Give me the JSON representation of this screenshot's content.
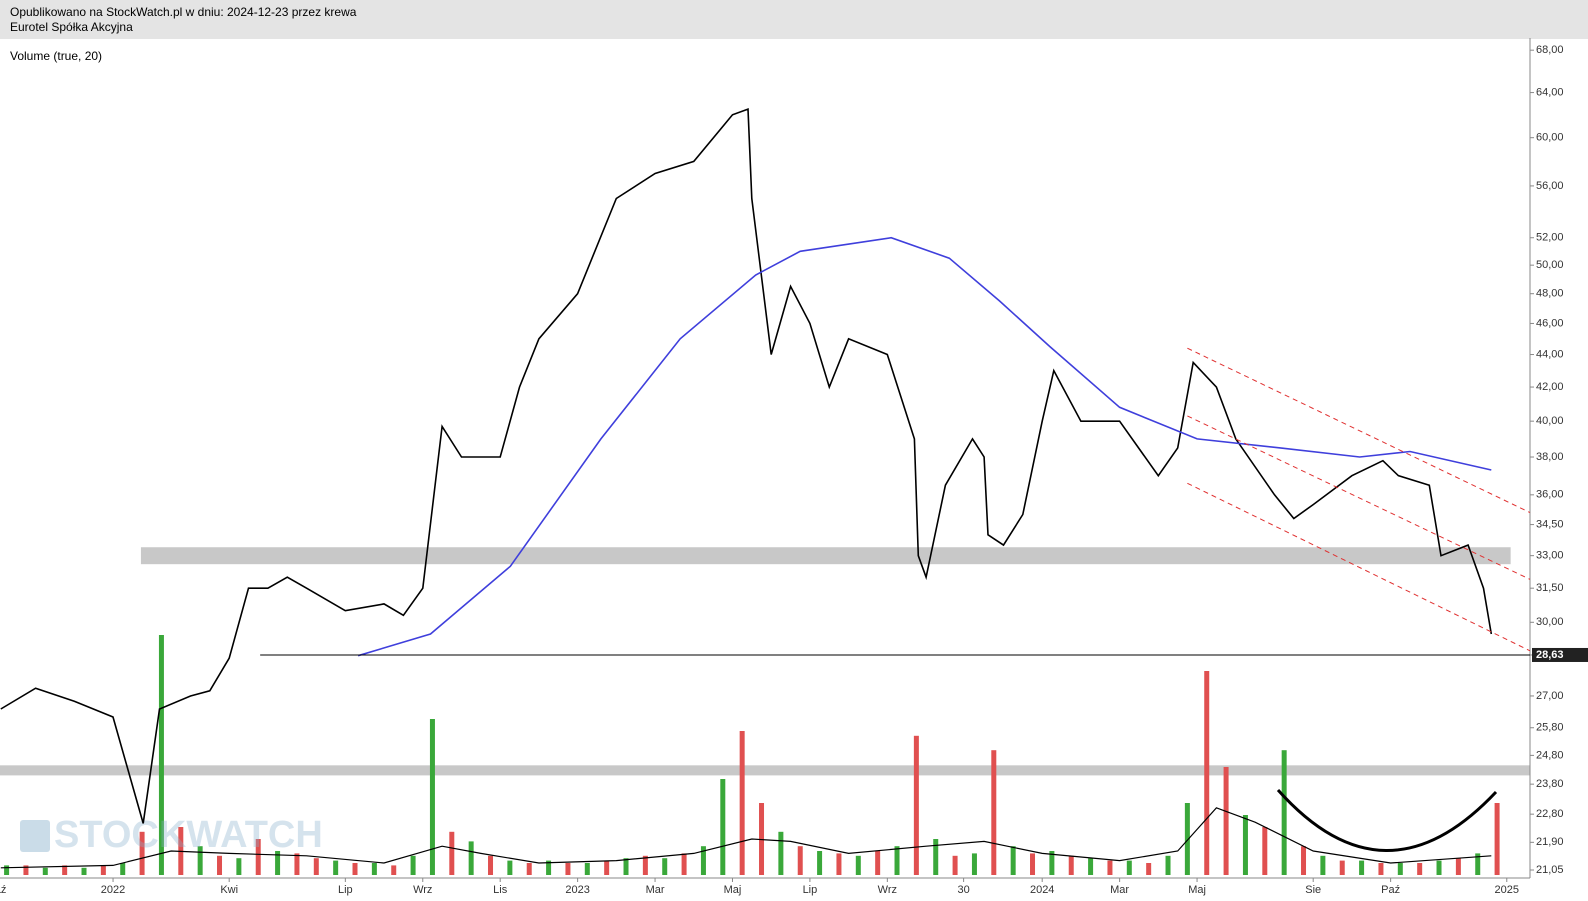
{
  "header": {
    "line1": "Opublikowano na StockWatch.pl w dniu: 2024-12-23 przez krewa",
    "line2": "Eurotel Spółka Akcyjna"
  },
  "chart_data": {
    "type": "line",
    "subtitle": "Volume (true, 20)",
    "watermark": "STOCKWATCH",
    "log_scale": true,
    "xlim": [
      -2.92,
      36.6
    ],
    "xticks": [
      {
        "value": -3,
        "label": "Paź"
      },
      {
        "value": 0,
        "label": "2022"
      },
      {
        "value": 3,
        "label": "Kwi"
      },
      {
        "value": 6,
        "label": "Lip"
      },
      {
        "value": 8,
        "label": "Wrz"
      },
      {
        "value": 10,
        "label": "Lis"
      },
      {
        "value": 12,
        "label": "2023"
      },
      {
        "value": 14,
        "label": "Mar"
      },
      {
        "value": 16,
        "label": "Maj"
      },
      {
        "value": 18,
        "label": "Lip"
      },
      {
        "value": 20,
        "label": "Wrz"
      },
      {
        "value": 21.97,
        "label": "30"
      },
      {
        "value": 24,
        "label": "2024"
      },
      {
        "value": 26,
        "label": "Mar"
      },
      {
        "value": 28,
        "label": "Maj"
      },
      {
        "value": 31,
        "label": "Sie"
      },
      {
        "value": 33,
        "label": "Paź"
      },
      {
        "value": 36,
        "label": "2025"
      }
    ],
    "ylim": [
      20.9,
      68.8
    ],
    "yticks": [
      {
        "value": 68,
        "label": "68,00"
      },
      {
        "value": 64,
        "label": "64,00"
      },
      {
        "value": 60,
        "label": "60,00"
      },
      {
        "value": 56,
        "label": "56,00"
      },
      {
        "value": 52,
        "label": "52,00"
      },
      {
        "value": 50,
        "label": "50,00"
      },
      {
        "value": 48,
        "label": "48,00"
      },
      {
        "value": 46,
        "label": "46,00"
      },
      {
        "value": 44,
        "label": "44,00"
      },
      {
        "value": 42,
        "label": "42,00"
      },
      {
        "value": 40,
        "label": "40,00"
      },
      {
        "value": 38,
        "label": "38,00"
      },
      {
        "value": 36,
        "label": "36,00"
      },
      {
        "value": 34.5,
        "label": "34,50"
      },
      {
        "value": 33,
        "label": "33,00"
      },
      {
        "value": 31.5,
        "label": "31,50"
      },
      {
        "value": 30,
        "label": "30,00"
      },
      {
        "value": 28.63,
        "label": "28,63"
      },
      {
        "value": 27,
        "label": "27,00"
      },
      {
        "value": 25.8,
        "label": "25,80"
      },
      {
        "value": 24.8,
        "label": "24,80"
      },
      {
        "value": 23.8,
        "label": "23,80"
      },
      {
        "value": 22.8,
        "label": "22,80"
      },
      {
        "value": 21.9,
        "label": "21,90"
      },
      {
        "value": 21.05,
        "label": "21,05"
      }
    ],
    "highlight_tick": 17,
    "y2lim": [
      0,
      100
    ],
    "series": [
      {
        "color": "#000000",
        "x": [
          -2.9,
          -2,
          -1,
          0,
          0.78,
          1.2,
          2,
          2.5,
          3,
          3.5,
          4,
          4.5,
          5,
          6,
          7,
          7.5,
          8,
          8.5,
          9,
          10,
          10.5,
          11,
          12,
          13,
          14,
          15,
          16,
          16.4,
          16.5,
          17,
          17.5,
          18,
          18.5,
          19,
          20,
          20.7,
          20.8,
          21,
          21.5,
          22.2,
          22.5,
          22.6,
          23,
          23.5,
          24,
          24.3,
          25,
          26,
          27,
          27.5,
          27.9,
          28.5,
          29,
          30,
          30.5,
          31,
          32,
          32.8,
          33.2,
          34,
          34.3,
          35,
          35.4,
          35.6
        ],
        "values": [
          26.5,
          27.3,
          26.8,
          26.2,
          22.5,
          26.5,
          27,
          27.2,
          28.5,
          31.5,
          31.5,
          32,
          31.5,
          30.5,
          30.8,
          30.3,
          31.5,
          39.7,
          38,
          38,
          42,
          45,
          48,
          55,
          57,
          58,
          62,
          62.5,
          55,
          44,
          48.5,
          46,
          42,
          45,
          44,
          39,
          33,
          32,
          36.5,
          39,
          38,
          34,
          33.5,
          35,
          40,
          43,
          40,
          40,
          37,
          38.5,
          43.5,
          42,
          39,
          36,
          34.8,
          35.5,
          37,
          37.8,
          37,
          36.5,
          33,
          33.5,
          31.5,
          29.5
        ]
      },
      {
        "color": "#3f3fdc",
        "x": [
          6.33,
          8.2,
          10.26,
          12.6,
          14.65,
          16.6,
          17.75,
          20.1,
          21.6,
          22.9,
          24.2,
          26,
          28,
          30.15,
          32.2,
          33.5,
          35.6
        ],
        "values": [
          28.6,
          29.5,
          32.5,
          39,
          45,
          49.3,
          51,
          52,
          50.5,
          47.5,
          44.5,
          40.8,
          39,
          38.5,
          38,
          38.3,
          37.3
        ]
      },
      {
        "type": "bar",
        "axis": "y2",
        "x": [
          -2.75,
          -2.25,
          -1.75,
          -1.25,
          -0.75,
          -0.25,
          0.25,
          0.75,
          1.25,
          1.75,
          2.25,
          2.75,
          3.25,
          3.75,
          4.25,
          4.75,
          5.25,
          5.75,
          6.25,
          6.75,
          7.25,
          7.75,
          8.25,
          8.75,
          9.25,
          9.75,
          10.25,
          10.75,
          11.25,
          11.75,
          12.25,
          12.75,
          13.25,
          13.75,
          14.25,
          14.75,
          15.25,
          15.75,
          16.25,
          16.75,
          17.25,
          17.75,
          18.25,
          18.75,
          19.25,
          19.75,
          20.25,
          20.75,
          21.25,
          21.75,
          22.25,
          22.75,
          23.25,
          23.75,
          24.25,
          24.75,
          25.25,
          25.75,
          26.25,
          26.75,
          27.25,
          27.75,
          28.25,
          28.75,
          29.25,
          29.75,
          30.25,
          30.75,
          31.25,
          31.75,
          32.25,
          32.75,
          33.25,
          33.75,
          34.25,
          34.75,
          35.25,
          35.75
        ],
        "values": [
          4,
          4,
          3,
          4,
          3,
          4,
          5,
          18,
          100,
          20,
          12,
          8,
          7,
          15,
          10,
          9,
          7,
          6,
          5,
          5,
          4,
          8,
          65,
          18,
          14,
          8,
          6,
          5,
          6,
          5,
          5,
          6,
          7,
          8,
          7,
          9,
          12,
          40,
          60,
          30,
          18,
          12,
          10,
          9,
          8,
          10,
          12,
          58,
          15,
          8,
          9,
          52,
          12,
          9,
          10,
          8,
          7,
          6,
          6,
          5,
          8,
          30,
          85,
          45,
          25,
          20,
          52,
          12,
          8,
          6,
          6,
          5,
          5,
          5,
          6,
          7,
          9,
          30
        ],
        "colors": [
          "#3aa83a",
          "#e05050",
          "#3aa83a",
          "#e05050",
          "#3aa83a",
          "#e05050",
          "#3aa83a",
          "#e05050",
          "#3aa83a",
          "#e05050",
          "#3aa83a",
          "#e05050",
          "#3aa83a",
          "#e05050",
          "#3aa83a",
          "#e05050",
          "#e05050",
          "#3aa83a",
          "#e05050",
          "#3aa83a",
          "#e05050",
          "#3aa83a",
          "#3aa83a",
          "#e05050",
          "#3aa83a",
          "#e05050",
          "#3aa83a",
          "#e05050",
          "#3aa83a",
          "#e05050",
          "#3aa83a",
          "#e05050",
          "#3aa83a",
          "#e05050",
          "#3aa83a",
          "#e05050",
          "#3aa83a",
          "#3aa83a",
          "#e05050",
          "#e05050",
          "#3aa83a",
          "#e05050",
          "#3aa83a",
          "#e05050",
          "#3aa83a",
          "#e05050",
          "#3aa83a",
          "#e05050",
          "#3aa83a",
          "#e05050",
          "#3aa83a",
          "#e05050",
          "#3aa83a",
          "#e05050",
          "#3aa83a",
          "#e05050",
          "#3aa83a",
          "#e05050",
          "#3aa83a",
          "#e05050",
          "#3aa83a",
          "#3aa83a",
          "#e05050",
          "#e05050",
          "#3aa83a",
          "#e05050",
          "#3aa83a",
          "#e05050",
          "#3aa83a",
          "#e05050",
          "#3aa83a",
          "#e05050",
          "#3aa83a",
          "#e05050",
          "#3aa83a",
          "#e05050",
          "#3aa83a",
          "#e05050"
        ]
      },
      {
        "axis": "y2",
        "color": "#000000",
        "x": [
          -2.9,
          0,
          1.5,
          3,
          5,
          7,
          8.5,
          9.5,
          11,
          13,
          15,
          16.5,
          17.5,
          19,
          21,
          22.5,
          24,
          26,
          27.5,
          28.5,
          29.5,
          31,
          33,
          35.6
        ],
        "values": [
          3,
          4,
          10,
          9,
          8,
          5,
          12,
          9,
          5,
          6,
          9,
          15,
          14,
          9,
          12,
          14,
          9,
          6,
          10,
          28,
          22,
          10,
          5,
          8
        ]
      }
    ],
    "zones": [
      {
        "x": [
          0.72,
          36.1
        ],
        "y": [
          32.6,
          33.4
        ]
      },
      {
        "x": [
          -2.92,
          36.6
        ],
        "y": [
          24.1,
          24.45
        ]
      }
    ],
    "trendlines": [
      {
        "color": "#e03030",
        "dashed": true,
        "x": [
          27.75,
          36.6
        ],
        "y": [
          44.4,
          35.1
        ]
      },
      {
        "color": "#e03030",
        "dashed": true,
        "x": [
          27.75,
          36.6
        ],
        "y": [
          40.3,
          31.9
        ]
      },
      {
        "color": "#e03030",
        "dashed": true,
        "x": [
          27.75,
          36.6
        ],
        "y": [
          36.6,
          28.8
        ]
      },
      {
        "color": "#000000",
        "dashed": false,
        "x": [
          3.8,
          36.6
        ],
        "y": [
          28.63,
          28.63
        ]
      }
    ]
  }
}
